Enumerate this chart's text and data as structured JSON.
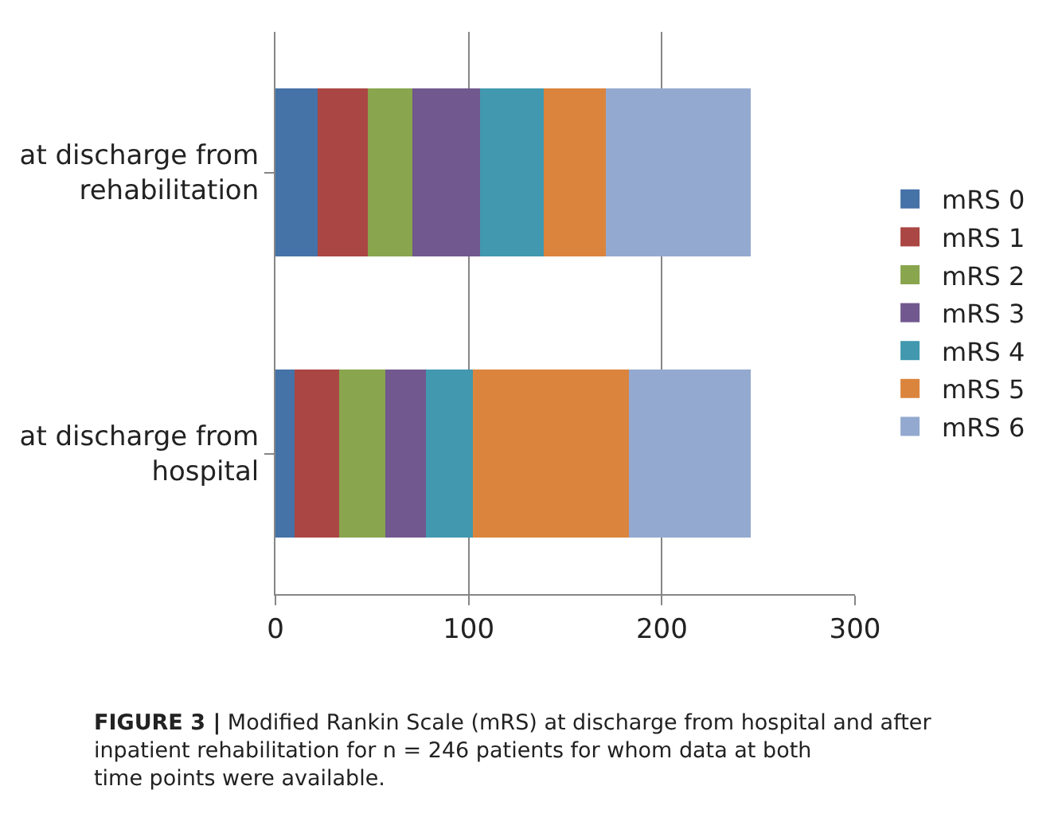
{
  "chart_data": {
    "type": "bar",
    "orientation": "horizontal",
    "stacked": true,
    "categories": [
      "at discharge from rehabilitation",
      "at discharge from hospital"
    ],
    "series": [
      {
        "name": "mRS 0",
        "color": "#4572a7",
        "values": [
          22,
          10
        ]
      },
      {
        "name": "mRS 1",
        "color": "#aa4643",
        "values": [
          26,
          23
        ]
      },
      {
        "name": "mRS 2",
        "color": "#89a54e",
        "values": [
          23,
          24
        ]
      },
      {
        "name": "mRS 3",
        "color": "#71588f",
        "values": [
          35,
          21
        ]
      },
      {
        "name": "mRS 4",
        "color": "#4198af",
        "values": [
          33,
          24
        ]
      },
      {
        "name": "mRS 5",
        "color": "#db843d",
        "values": [
          32,
          81
        ]
      },
      {
        "name": "mRS 6",
        "color": "#93a9cf",
        "values": [
          75,
          63
        ]
      }
    ],
    "xlim": [
      0,
      300
    ],
    "xticks": [
      0,
      100,
      200,
      300
    ],
    "grid": "x",
    "legend": "right",
    "annotations": [
      "FIGURE 3 | Modified Rankin Scale (mRS) at discharge from hospital and after inpatient rehabilitation for n = 246 patients for whom data at both time points were available."
    ]
  }
}
